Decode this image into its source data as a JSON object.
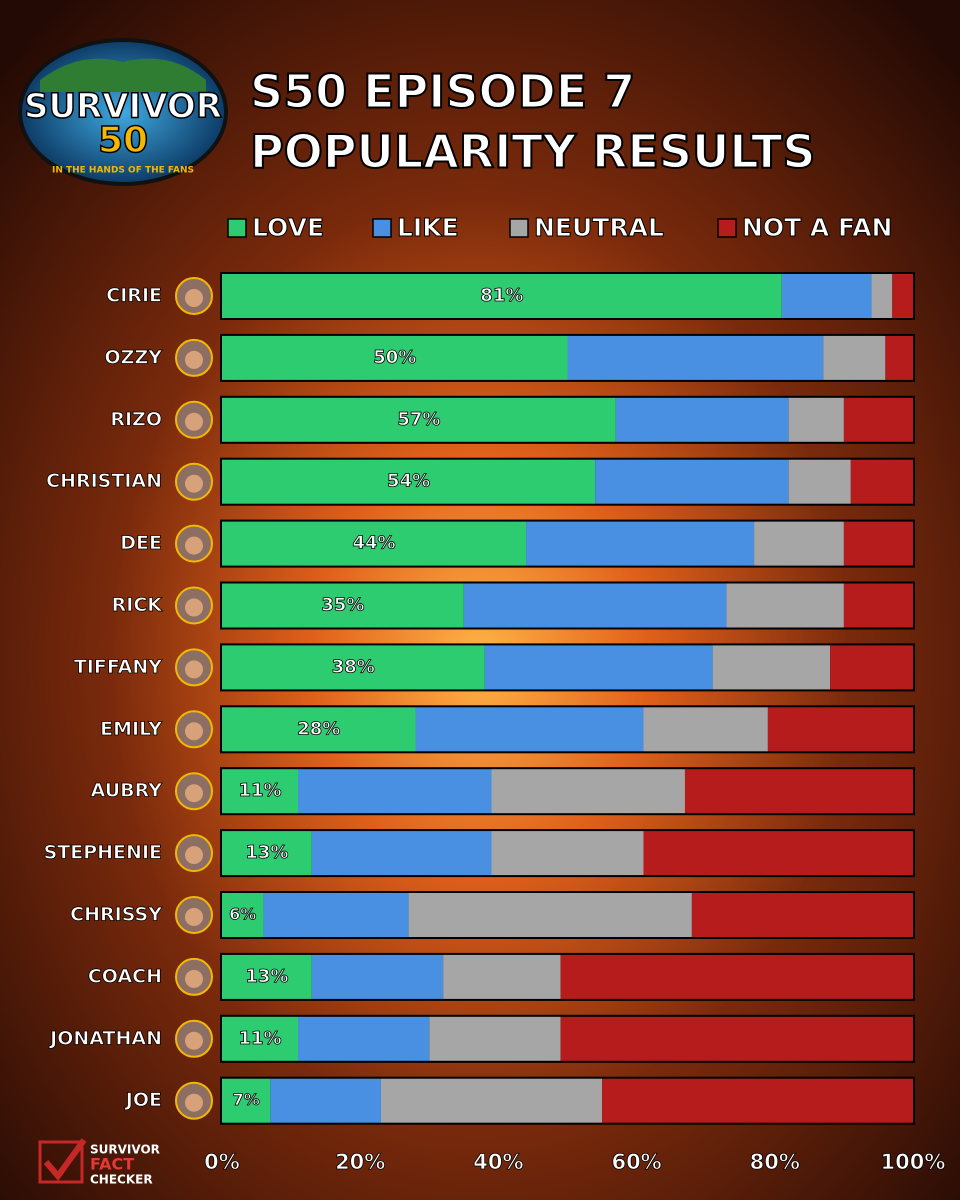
{
  "chart_data": {
    "type": "stacked-bar",
    "orientation": "horizontal",
    "title": [
      "S50 EPISODE 7",
      "POPULARITY RESULTS"
    ],
    "logo": {
      "name": "SURVIVOR",
      "number": "50",
      "tagline": "IN THE HANDS OF THE FANS"
    },
    "credit": [
      "SURVIVOR",
      "FACT",
      "CHECKER"
    ],
    "categories": [
      "CIRIE",
      "OZZY",
      "RIZO",
      "CHRISTIAN",
      "DEE",
      "RICK",
      "TIFFANY",
      "EMILY",
      "AUBRY",
      "STEPHENIE",
      "CHRISSY",
      "COACH",
      "JONATHAN",
      "JOE"
    ],
    "series": [
      {
        "name": "LOVE",
        "color": "#2ecc71",
        "values": [
          81,
          50,
          57,
          54,
          44,
          35,
          38,
          28,
          11,
          13,
          6,
          13,
          11,
          7
        ],
        "value_labels": [
          "81%",
          "50%",
          "57%",
          "54%",
          "44%",
          "35%",
          "38%",
          "28%",
          "11%",
          "13%",
          "6%",
          "13%",
          "11%",
          "7%"
        ]
      },
      {
        "name": "LIKE",
        "color": "#4a90e2",
        "values": [
          13,
          37,
          25,
          28,
          33,
          38,
          33,
          33,
          28,
          26,
          21,
          19,
          19,
          16
        ]
      },
      {
        "name": "NEUTRAL",
        "color": "#a6a6a6",
        "values": [
          3,
          9,
          8,
          9,
          13,
          17,
          17,
          18,
          28,
          22,
          41,
          17,
          19,
          32
        ]
      },
      {
        "name": "NOT A FAN",
        "color": "#b71c1c",
        "values": [
          3,
          4,
          10,
          9,
          10,
          10,
          12,
          21,
          33,
          39,
          32,
          51,
          51,
          45
        ]
      }
    ],
    "xlim": [
      0,
      100
    ],
    "xticks": [
      {
        "value": 0,
        "label": "0%"
      },
      {
        "value": 20,
        "label": "20%"
      },
      {
        "value": 40,
        "label": "40%"
      },
      {
        "value": 60,
        "label": "60%"
      },
      {
        "value": 80,
        "label": "80%"
      },
      {
        "value": 100,
        "label": "100%"
      }
    ],
    "grid": false
  }
}
